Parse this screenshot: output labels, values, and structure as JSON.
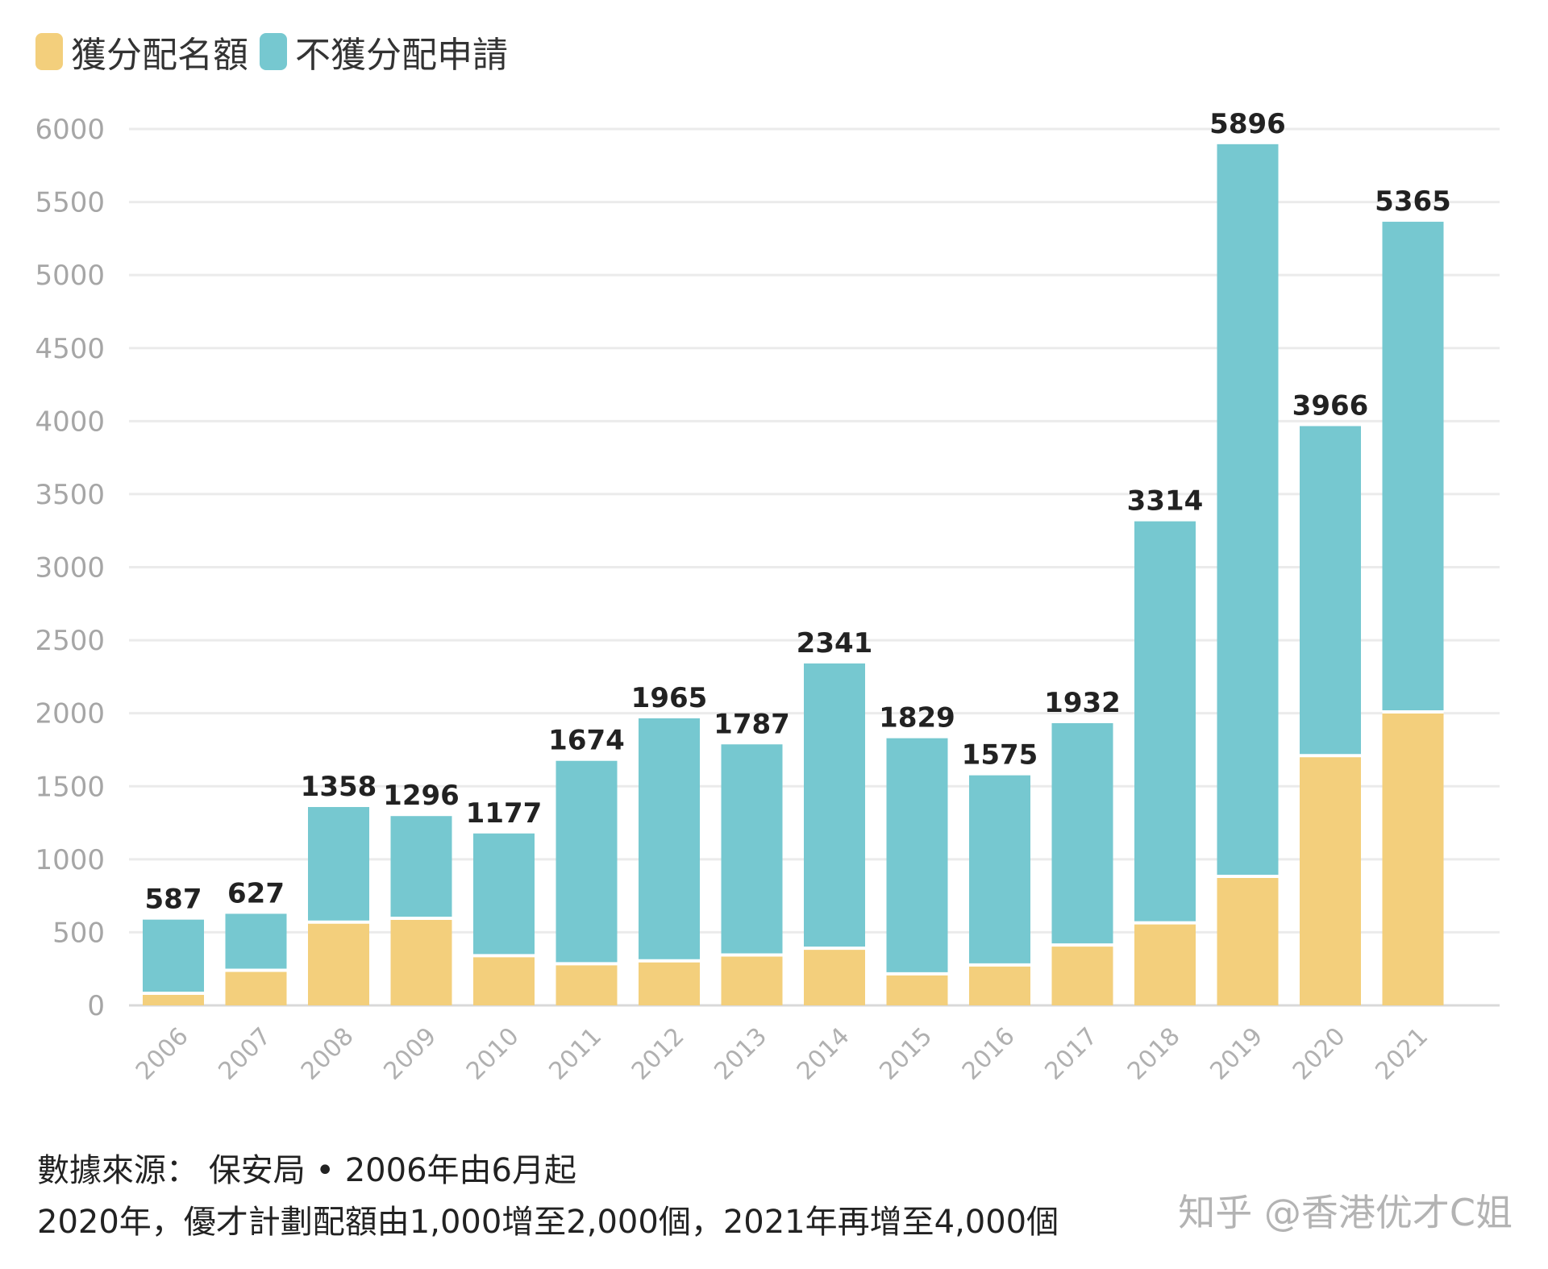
{
  "colors": {
    "allocated": "#f3cf7c",
    "not_allocated": "#76c8d0",
    "grid": "#ebebeb",
    "axis": "#d9d9d9"
  },
  "legend": {
    "allocated_label": "獲分配名額",
    "not_allocated_label": "不獲分配申請"
  },
  "footer": {
    "line1": "數據來源： 保安局 • 2006年由6月起",
    "line2": "2020年，優才計劃配額由1,000增至2,000個，2021年再增至4,000個"
  },
  "credit": "知乎 @香港优才C姐",
  "chart_data": {
    "type": "bar",
    "stacked": true,
    "categories": [
      "2006",
      "2007",
      "2008",
      "2009",
      "2010",
      "2011",
      "2012",
      "2013",
      "2014",
      "2015",
      "2016",
      "2017",
      "2018",
      "2019",
      "2020",
      "2021"
    ],
    "series": [
      {
        "name": "獲分配名額",
        "values": [
          83,
          240,
          570,
          596,
          340,
          285,
          305,
          345,
          391,
          216,
          277,
          413,
          565,
          883,
          1710,
          2009
        ]
      },
      {
        "name": "不獲分配申請",
        "values": [
          504,
          387,
          788,
          700,
          837,
          1389,
          1660,
          1442,
          1950,
          1613,
          1298,
          1519,
          2749,
          5013,
          2256,
          3356
        ]
      }
    ],
    "totals": [
      "587",
      "627",
      "1358",
      "1296",
      "1177",
      "1674",
      "1965",
      "1787",
      "2341",
      "1829",
      "1575",
      "1932",
      "3314",
      "5896",
      "3966",
      "5365"
    ],
    "y_ticks": [
      "0",
      "500",
      "1000",
      "1500",
      "2000",
      "2500",
      "3000",
      "3500",
      "4000",
      "4500",
      "5000",
      "5500",
      "6000"
    ],
    "ylim": [
      0,
      6000
    ],
    "grid": true,
    "legend_position": "top-left"
  }
}
